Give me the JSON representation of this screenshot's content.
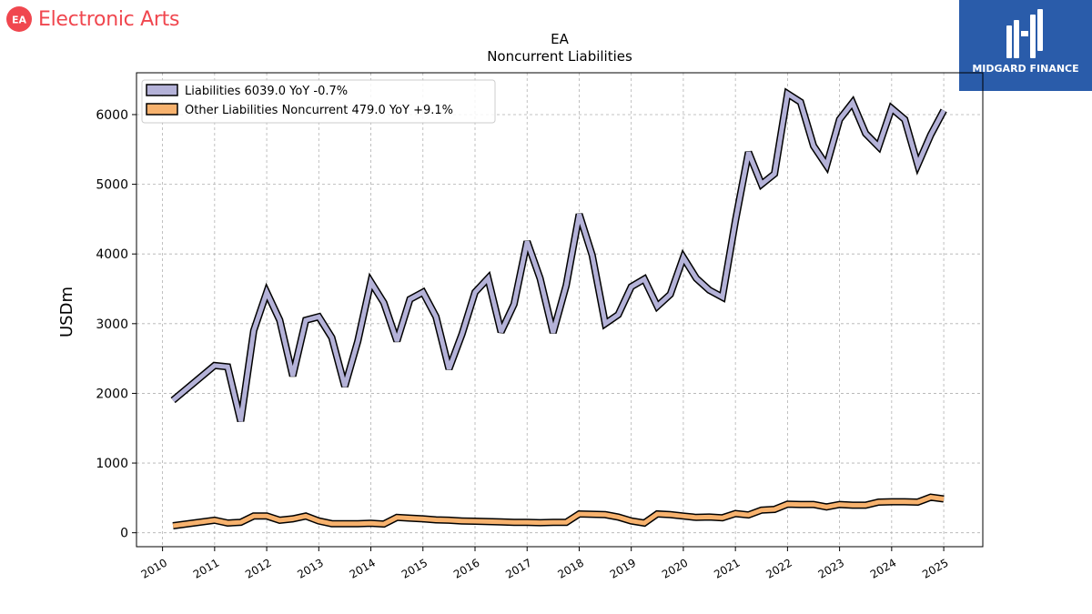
{
  "header": {
    "brand_name": "Electronic Arts",
    "brand_logo_text": "EA",
    "partner_name": "MIDGARD FINANCE"
  },
  "chart_data": {
    "type": "line",
    "title": "EA",
    "subtitle": "Noncurrent  Liabilities",
    "ylabel": "USDm",
    "xlabel": "",
    "ylim": [
      -200,
      6600
    ],
    "xlim": [
      2009.5,
      2025.75
    ],
    "yticks": [
      0,
      1000,
      2000,
      3000,
      4000,
      5000,
      6000
    ],
    "xticks": [
      "2010",
      "2011",
      "2012",
      "2013",
      "2014",
      "2015",
      "2016",
      "2017",
      "2018",
      "2019",
      "2020",
      "2021",
      "2022",
      "2023",
      "2024",
      "2025"
    ],
    "grid": true,
    "legend_position": "top-left",
    "series": [
      {
        "name": "Liabilities",
        "legend_label": "Liabilities  6039.0 YoY -0.7%",
        "color": "#b4b2d8",
        "points": [
          [
            2010.2,
            1900
          ],
          [
            2011.0,
            2400
          ],
          [
            2011.25,
            2380
          ],
          [
            2011.5,
            1600
          ],
          [
            2011.75,
            2900
          ],
          [
            2012.0,
            3450
          ],
          [
            2012.25,
            3050
          ],
          [
            2012.5,
            2250
          ],
          [
            2012.75,
            3050
          ],
          [
            2013.0,
            3100
          ],
          [
            2013.25,
            2800
          ],
          [
            2013.5,
            2100
          ],
          [
            2013.75,
            2750
          ],
          [
            2014.0,
            3600
          ],
          [
            2014.25,
            3300
          ],
          [
            2014.5,
            2750
          ],
          [
            2014.75,
            3350
          ],
          [
            2015.0,
            3450
          ],
          [
            2015.25,
            3100
          ],
          [
            2015.5,
            2350
          ],
          [
            2015.75,
            2850
          ],
          [
            2016.0,
            3450
          ],
          [
            2016.25,
            3650
          ],
          [
            2016.5,
            2880
          ],
          [
            2016.75,
            3280
          ],
          [
            2017.0,
            4180
          ],
          [
            2017.25,
            3650
          ],
          [
            2017.5,
            2870
          ],
          [
            2017.75,
            3550
          ],
          [
            2018.0,
            4570
          ],
          [
            2018.25,
            3980
          ],
          [
            2018.5,
            3000
          ],
          [
            2018.75,
            3130
          ],
          [
            2019.0,
            3530
          ],
          [
            2019.25,
            3640
          ],
          [
            2019.5,
            3250
          ],
          [
            2019.75,
            3420
          ],
          [
            2020.0,
            3950
          ],
          [
            2020.25,
            3650
          ],
          [
            2020.5,
            3480
          ],
          [
            2020.75,
            3380
          ],
          [
            2021.0,
            4480
          ],
          [
            2021.25,
            5460
          ],
          [
            2021.5,
            5000
          ],
          [
            2021.75,
            5150
          ],
          [
            2022.0,
            6300
          ],
          [
            2022.25,
            6180
          ],
          [
            2022.5,
            5550
          ],
          [
            2022.75,
            5270
          ],
          [
            2023.0,
            5930
          ],
          [
            2023.25,
            6170
          ],
          [
            2023.5,
            5730
          ],
          [
            2023.75,
            5540
          ],
          [
            2024.0,
            6090
          ],
          [
            2024.25,
            5930
          ],
          [
            2024.5,
            5280
          ],
          [
            2024.75,
            5710
          ],
          [
            2025.0,
            6060
          ]
        ]
      },
      {
        "name": "Other Liabilities Noncurrent",
        "legend_label": "Other Liabilities Noncurrent  479.0 YoY +9.1%",
        "color": "#f7b26e",
        "points": [
          [
            2010.2,
            100
          ],
          [
            2011.0,
            180
          ],
          [
            2011.25,
            140
          ],
          [
            2011.5,
            150
          ],
          [
            2011.75,
            240
          ],
          [
            2012.0,
            240
          ],
          [
            2012.25,
            180
          ],
          [
            2012.5,
            200
          ],
          [
            2012.75,
            240
          ],
          [
            2013.0,
            170
          ],
          [
            2013.25,
            130
          ],
          [
            2013.5,
            130
          ],
          [
            2013.75,
            130
          ],
          [
            2014.0,
            135
          ],
          [
            2014.25,
            125
          ],
          [
            2014.5,
            220
          ],
          [
            2014.75,
            210
          ],
          [
            2015.0,
            200
          ],
          [
            2015.25,
            185
          ],
          [
            2015.5,
            180
          ],
          [
            2015.75,
            170
          ],
          [
            2016.0,
            165
          ],
          [
            2016.25,
            160
          ],
          [
            2016.5,
            155
          ],
          [
            2016.75,
            150
          ],
          [
            2017.0,
            150
          ],
          [
            2017.25,
            145
          ],
          [
            2017.5,
            150
          ],
          [
            2017.75,
            150
          ],
          [
            2018.0,
            270
          ],
          [
            2018.25,
            265
          ],
          [
            2018.5,
            260
          ],
          [
            2018.75,
            225
          ],
          [
            2019.0,
            170
          ],
          [
            2019.25,
            140
          ],
          [
            2019.5,
            270
          ],
          [
            2019.75,
            260
          ],
          [
            2020.0,
            240
          ],
          [
            2020.25,
            220
          ],
          [
            2020.5,
            225
          ],
          [
            2020.75,
            215
          ],
          [
            2021.0,
            275
          ],
          [
            2021.25,
            255
          ],
          [
            2021.5,
            325
          ],
          [
            2021.75,
            335
          ],
          [
            2022.0,
            410
          ],
          [
            2022.25,
            405
          ],
          [
            2022.5,
            405
          ],
          [
            2022.75,
            370
          ],
          [
            2023.0,
            405
          ],
          [
            2023.25,
            395
          ],
          [
            2023.5,
            395
          ],
          [
            2023.75,
            440
          ],
          [
            2024.0,
            445
          ],
          [
            2024.25,
            445
          ],
          [
            2024.5,
            440
          ],
          [
            2024.75,
            510
          ],
          [
            2025.0,
            485
          ]
        ]
      }
    ]
  }
}
